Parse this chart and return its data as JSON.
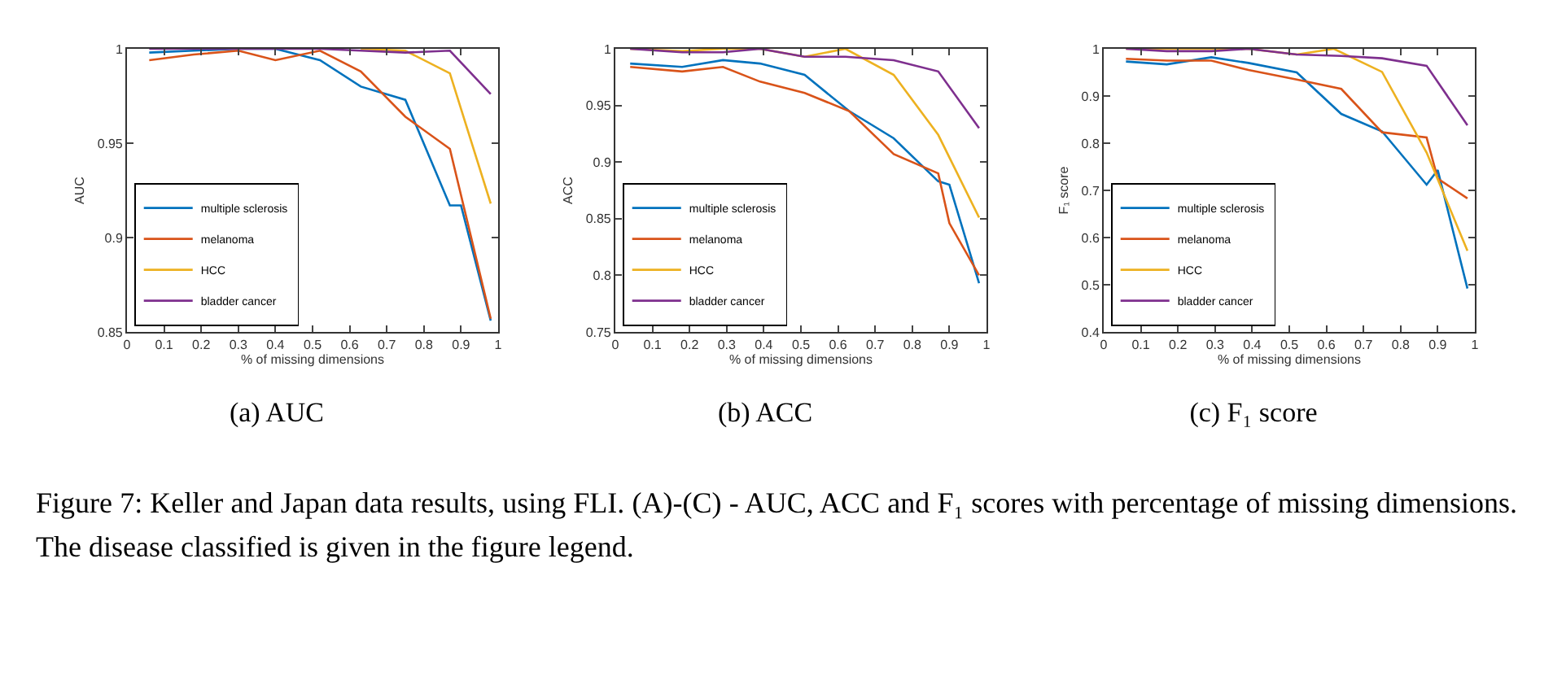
{
  "chart_data": [
    {
      "type": "line",
      "title": "(a) AUC",
      "xlabel": "% of missing dimensions",
      "ylabel": "AUC",
      "xlim": [
        0,
        1
      ],
      "xticks": [
        0,
        0.1,
        0.2,
        0.3,
        0.4,
        0.5,
        0.6,
        0.7,
        0.8,
        0.9,
        1
      ],
      "ylim": [
        0.85,
        1
      ],
      "yticks": [
        0.85,
        0.9,
        0.95,
        1
      ],
      "grid": false,
      "legend": "bottom left",
      "marker": "none",
      "line_style": "solid",
      "series": [
        {
          "name": "multiple sclerosis",
          "color": "#0072bd",
          "x": [
            0.06,
            0.18,
            0.3,
            0.4,
            0.52,
            0.63,
            0.75,
            0.87,
            0.9,
            0.98
          ],
          "values": [
            0.998,
            0.999,
            1.0,
            1.0,
            0.994,
            0.98,
            0.973,
            0.917,
            0.917,
            0.856
          ]
        },
        {
          "name": "melanoma",
          "color": "#d95319",
          "x": [
            0.06,
            0.18,
            0.3,
            0.4,
            0.52,
            0.63,
            0.75,
            0.87,
            0.98
          ],
          "values": [
            0.994,
            0.997,
            0.999,
            0.994,
            0.999,
            0.988,
            0.964,
            0.947,
            0.857
          ]
        },
        {
          "name": "HCC",
          "color": "#edb120",
          "x": [
            0.63,
            0.75,
            0.87,
            0.98
          ],
          "values": [
            1.0,
            0.999,
            0.987,
            0.918
          ]
        },
        {
          "name": "bladder cancer",
          "color": "#7e2f8e",
          "x": [
            0.06,
            0.18,
            0.3,
            0.4,
            0.52,
            0.63,
            0.75,
            0.87,
            0.98
          ],
          "values": [
            1.0,
            1.0,
            1.0,
            1.0,
            1.0,
            0.999,
            0.998,
            0.999,
            0.976
          ]
        }
      ],
      "annotations": [
        "Figure 7: Keller and Japan data results, using FLI. (A)-(C) - AUC, ACC and F₁ scores with percentage of missing dimensions. The disease classified is given in the figure legend."
      ]
    },
    {
      "type": "line",
      "title": "(b) ACC",
      "xlabel": "% of missing dimensions",
      "ylabel": "ACC",
      "xlim": [
        0,
        1
      ],
      "xticks": [
        0,
        0.1,
        0.2,
        0.3,
        0.4,
        0.5,
        0.6,
        0.7,
        0.8,
        0.9,
        1
      ],
      "ylim": [
        0.75,
        1
      ],
      "yticks": [
        0.75,
        0.8,
        0.85,
        0.9,
        0.95,
        1
      ],
      "grid": false,
      "legend": "bottom left",
      "marker": "none",
      "line_style": "solid",
      "series": [
        {
          "name": "multiple sclerosis",
          "color": "#0072bd",
          "x": [
            0.04,
            0.18,
            0.29,
            0.39,
            0.51,
            0.63,
            0.75,
            0.87,
            0.9,
            0.98
          ],
          "values": [
            0.987,
            0.984,
            0.99,
            0.987,
            0.977,
            0.945,
            0.921,
            0.883,
            0.88,
            0.793
          ]
        },
        {
          "name": "melanoma",
          "color": "#d95319",
          "x": [
            0.04,
            0.18,
            0.29,
            0.39,
            0.51,
            0.63,
            0.75,
            0.87,
            0.9,
            0.98
          ],
          "values": [
            0.984,
            0.98,
            0.984,
            0.971,
            0.961,
            0.945,
            0.907,
            0.89,
            0.846,
            0.8
          ]
        },
        {
          "name": "HCC",
          "color": "#edb120",
          "x": [
            0.04,
            0.18,
            0.29,
            0.39,
            0.51,
            0.62,
            0.75,
            0.87,
            0.98
          ],
          "values": [
            1.0,
            0.998,
            1.0,
            1.0,
            0.993,
            1.0,
            0.977,
            0.924,
            0.851
          ]
        },
        {
          "name": "bladder cancer",
          "color": "#7e2f8e",
          "x": [
            0.04,
            0.18,
            0.29,
            0.39,
            0.51,
            0.62,
            0.75,
            0.87,
            0.98
          ],
          "values": [
            1.0,
            0.997,
            0.997,
            1.0,
            0.993,
            0.993,
            0.99,
            0.98,
            0.93
          ]
        }
      ]
    },
    {
      "type": "line",
      "title": "(c) F₁ score",
      "xlabel": "% of missing dimensions",
      "ylabel": "F₁ score",
      "xlim": [
        0,
        1
      ],
      "xticks": [
        0,
        0.1,
        0.2,
        0.3,
        0.4,
        0.5,
        0.6,
        0.7,
        0.8,
        0.9,
        1
      ],
      "ylim": [
        0.4,
        1
      ],
      "yticks": [
        0.4,
        0.5,
        0.6,
        0.7,
        0.8,
        0.9,
        1
      ],
      "grid": false,
      "legend": "bottom left",
      "marker": "none",
      "line_style": "solid",
      "series": [
        {
          "name": "multiple sclerosis",
          "color": "#0072bd",
          "x": [
            0.06,
            0.17,
            0.29,
            0.39,
            0.52,
            0.64,
            0.75,
            0.87,
            0.9,
            0.98
          ],
          "values": [
            0.973,
            0.967,
            0.982,
            0.97,
            0.95,
            0.862,
            0.825,
            0.712,
            0.743,
            0.492
          ]
        },
        {
          "name": "melanoma",
          "color": "#d95319",
          "x": [
            0.06,
            0.17,
            0.29,
            0.39,
            0.52,
            0.64,
            0.75,
            0.87,
            0.9,
            0.98
          ],
          "values": [
            0.979,
            0.975,
            0.975,
            0.955,
            0.935,
            0.915,
            0.823,
            0.812,
            0.725,
            0.683
          ]
        },
        {
          "name": "HCC",
          "color": "#edb120",
          "x": [
            0.06,
            0.17,
            0.29,
            0.39,
            0.52,
            0.62,
            0.75,
            0.87,
            0.98
          ],
          "values": [
            1.0,
            1.0,
            1.0,
            1.0,
            0.988,
            1.0,
            0.951,
            0.78,
            0.572
          ]
        },
        {
          "name": "bladder cancer",
          "color": "#7e2f8e",
          "x": [
            0.06,
            0.17,
            0.29,
            0.39,
            0.52,
            0.64,
            0.75,
            0.87,
            0.98
          ],
          "values": [
            1.0,
            0.995,
            0.995,
            1.0,
            0.988,
            0.985,
            0.98,
            0.964,
            0.838
          ]
        }
      ]
    }
  ]
}
